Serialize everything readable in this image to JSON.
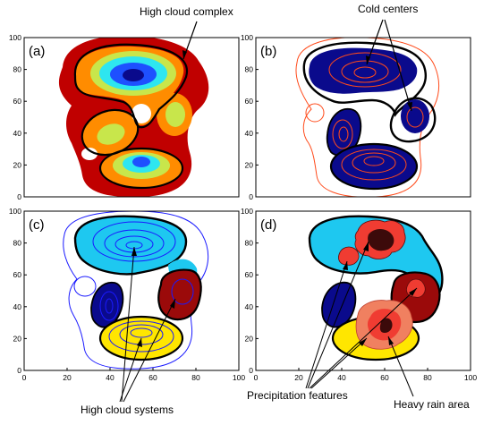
{
  "figure": {
    "annotations": {
      "high_cloud_complex": "High cloud complex",
      "cold_centers": "Cold centers",
      "high_cloud_systems": "High cloud systems",
      "precipitation_features": "Precipitation features",
      "heavy_rain_area": "Heavy rain area"
    },
    "panels": [
      {
        "id": "a",
        "label": "(a)"
      },
      {
        "id": "b",
        "label": "(b)"
      },
      {
        "id": "c",
        "label": "(c)"
      },
      {
        "id": "d",
        "label": "(d)"
      }
    ],
    "axis": {
      "range": [
        0,
        100
      ],
      "ticks": [
        "0",
        "20",
        "40",
        "60",
        "80",
        "100"
      ]
    },
    "colors": {
      "dark_red": "#c00000",
      "orange": "#ff8c00",
      "yellow_green": "#c8e64b",
      "cyan": "#1ec8f0",
      "light_cyan": "#2ee6f0",
      "blue": "#1e50ff",
      "navy": "#0a0a8c",
      "yellow": "#ffe600",
      "maroon": "#9b0a0a",
      "contour_orange": "#ff4a1a",
      "contour_blue": "#1a1aff",
      "precip_red": "#f03c32",
      "precip_dark": "#3c0a0a",
      "rain_salmon": "#f08060"
    }
  }
}
